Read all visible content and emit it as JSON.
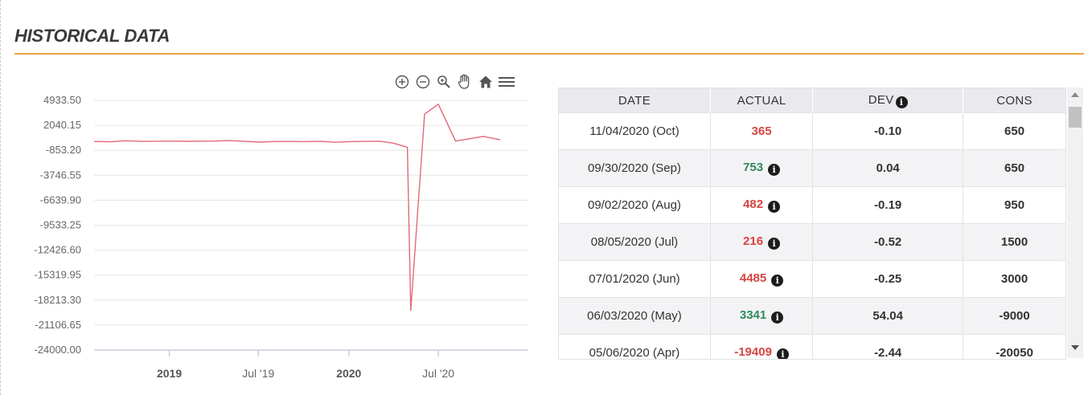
{
  "section": {
    "title": "HISTORICAL DATA"
  },
  "colors": {
    "accent": "#e8a33d",
    "line": "#e06a78",
    "positive": "#2f8a5c",
    "negative": "#d64541"
  },
  "toolbar": {
    "icons": [
      "zoom-in-icon",
      "zoom-out-icon",
      "magnify-icon",
      "pan-hand-icon",
      "home-icon",
      "menu-icon"
    ]
  },
  "table": {
    "headers": {
      "date": "DATE",
      "actual": "ACTUAL",
      "dev": "DEV",
      "cons": "CONS"
    },
    "rows": [
      {
        "date": "11/04/2020 (Oct)",
        "actual": "365",
        "actual_color": "negative",
        "info": false,
        "dev": "-0.10",
        "cons": "650"
      },
      {
        "date": "09/30/2020 (Sep)",
        "actual": "753",
        "actual_color": "positive",
        "info": true,
        "dev": "0.04",
        "cons": "650"
      },
      {
        "date": "09/02/2020 (Aug)",
        "actual": "482",
        "actual_color": "negative",
        "info": true,
        "dev": "-0.19",
        "cons": "950"
      },
      {
        "date": "08/05/2020 (Jul)",
        "actual": "216",
        "actual_color": "negative",
        "info": true,
        "dev": "-0.52",
        "cons": "1500"
      },
      {
        "date": "07/01/2020 (Jun)",
        "actual": "4485",
        "actual_color": "negative",
        "info": true,
        "dev": "-0.25",
        "cons": "3000"
      },
      {
        "date": "06/03/2020 (May)",
        "actual": "3341",
        "actual_color": "positive",
        "info": true,
        "dev": "54.04",
        "cons": "-9000"
      },
      {
        "date": "05/06/2020 (Apr)",
        "actual": "-19409",
        "actual_color": "negative",
        "info": true,
        "dev": "-2.44",
        "cons": "-20050"
      }
    ]
  },
  "chart_data": {
    "type": "line",
    "title": "",
    "xlabel": "",
    "ylabel": "",
    "grid": true,
    "x_ticks": [
      "2019",
      "Jul '19",
      "2020",
      "Jul '20"
    ],
    "x_range": [
      "2018-08-01",
      "2020-12-31"
    ],
    "y_ticks": [
      "4933.50",
      "2040.15",
      "-853.20",
      "-3746.55",
      "-6639.90",
      "-9533.25",
      "-12426.60",
      "-15319.95",
      "-18213.30",
      "-21106.65",
      "-24000.00"
    ],
    "ylim": [
      -24000,
      4933.5
    ],
    "series": [
      {
        "name": "",
        "points": [
          {
            "x": "2018-08-01",
            "y": 170
          },
          {
            "x": "2018-09-05",
            "y": 130
          },
          {
            "x": "2018-10-03",
            "y": 250
          },
          {
            "x": "2018-11-07",
            "y": 180
          },
          {
            "x": "2018-12-05",
            "y": 200
          },
          {
            "x": "2019-01-09",
            "y": 210
          },
          {
            "x": "2019-02-06",
            "y": 190
          },
          {
            "x": "2019-03-06",
            "y": 210
          },
          {
            "x": "2019-04-03",
            "y": 220
          },
          {
            "x": "2019-05-01",
            "y": 270
          },
          {
            "x": "2019-06-05",
            "y": 180
          },
          {
            "x": "2019-07-03",
            "y": 100
          },
          {
            "x": "2019-07-31",
            "y": 160
          },
          {
            "x": "2019-09-04",
            "y": 170
          },
          {
            "x": "2019-10-02",
            "y": 150
          },
          {
            "x": "2019-11-06",
            "y": 180
          },
          {
            "x": "2019-12-04",
            "y": 80
          },
          {
            "x": "2020-01-08",
            "y": 160
          },
          {
            "x": "2020-02-05",
            "y": 180
          },
          {
            "x": "2020-03-04",
            "y": 200
          },
          {
            "x": "2020-04-01",
            "y": -27
          },
          {
            "x": "2020-04-29",
            "y": -500
          },
          {
            "x": "2020-05-06",
            "y": -19409
          },
          {
            "x": "2020-06-03",
            "y": 3341
          },
          {
            "x": "2020-07-01",
            "y": 4485
          },
          {
            "x": "2020-08-05",
            "y": 216
          },
          {
            "x": "2020-09-02",
            "y": 482
          },
          {
            "x": "2020-09-30",
            "y": 753
          },
          {
            "x": "2020-11-04",
            "y": 365
          }
        ]
      }
    ]
  }
}
